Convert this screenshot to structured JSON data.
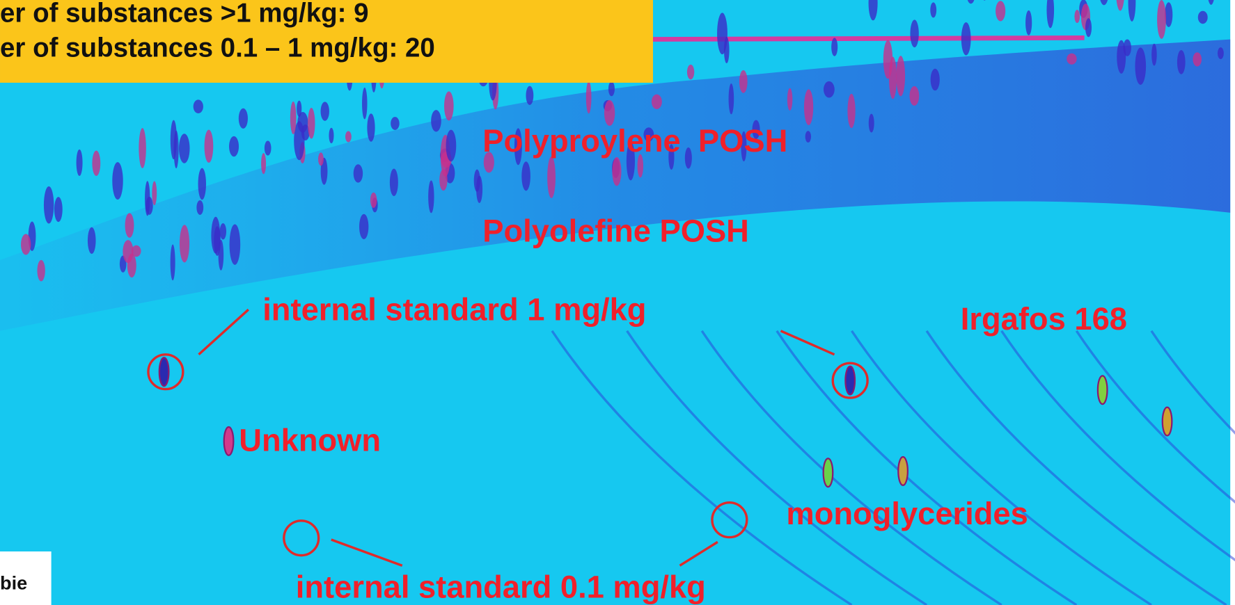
{
  "summary": {
    "lines": [
      "er of substances >1 mg/kg: 9",
      "er of substances 0.1 – 1 mg/kg: 20"
    ]
  },
  "labels": {
    "polypropylene": "Polyproylene  POSH",
    "polyolefine": "Polyolefine POSH",
    "istd_1": "internal standard 1 mg/kg",
    "irgafos": "Irgafos 168",
    "unknown": "Unknown",
    "monoglycerides": "monoglycerides",
    "istd_01": "internal standard 0.1 mg/kg"
  },
  "footer": {
    "fragment": "bie"
  }
}
